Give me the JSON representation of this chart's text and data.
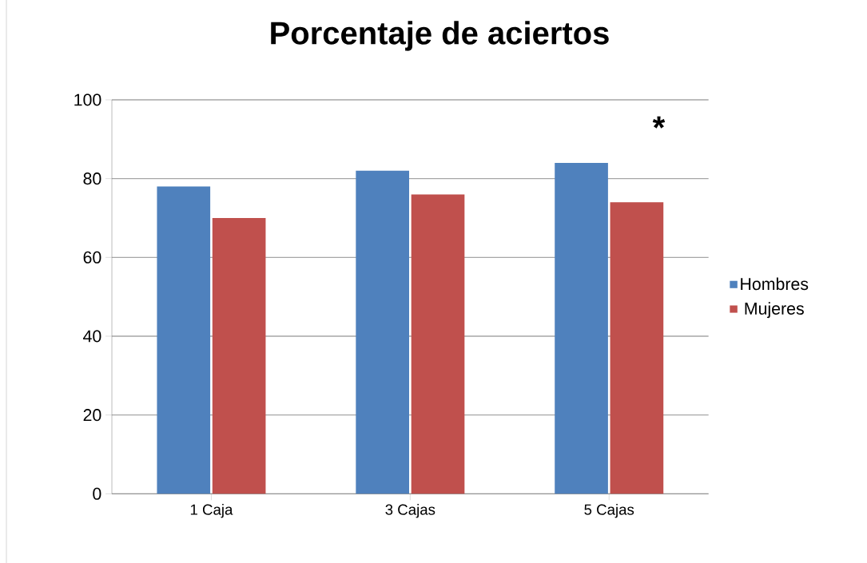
{
  "chart_data": {
    "type": "bar",
    "title": "Porcentaje de aciertos",
    "categories": [
      "1 Caja",
      "3 Cajas",
      "5 Cajas"
    ],
    "series": [
      {
        "name": "Hombres",
        "color": "#4f81bd",
        "values": [
          78,
          82,
          84
        ]
      },
      {
        "name": "Mujeres",
        "color": "#c0504d",
        "values": [
          70,
          76,
          74
        ]
      }
    ],
    "ylim": [
      0,
      100
    ],
    "yticks": [
      0,
      20,
      40,
      60,
      80,
      100
    ],
    "grid": "y",
    "legend": "right",
    "annotations": [
      "*"
    ]
  }
}
